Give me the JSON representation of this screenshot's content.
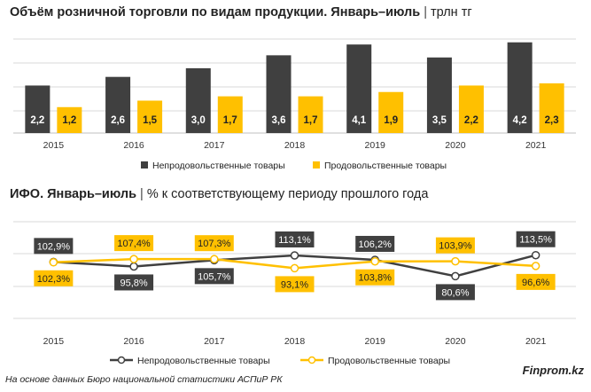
{
  "header1": {
    "title_bold": "Объём розничной торговли по видам продукции. Январь–июль",
    "title_unit": "трлн тг"
  },
  "header2": {
    "title_bold": "ИФО. Январь–июль",
    "title_unit": "% к соответствующему периоду прошлого года"
  },
  "footer": {
    "source": "На основе данных Бюро национальной статистики АСПиР РК",
    "brand": "Finprom.kz"
  },
  "colors": {
    "dark": "#404040",
    "yellow": "#FFC000",
    "grid": "#D9D9D9"
  },
  "chart_data": [
    {
      "type": "bar",
      "categories": [
        "2015",
        "2016",
        "2017",
        "2018",
        "2019",
        "2020",
        "2021"
      ],
      "series": [
        {
          "name": "Непродовольственные товары",
          "values": [
            2.2,
            2.6,
            3.0,
            3.6,
            4.1,
            3.5,
            4.2
          ],
          "labels": [
            "2,2",
            "2,6",
            "3,0",
            "3,6",
            "4,1",
            "3,5",
            "4,2"
          ]
        },
        {
          "name": "Продовольственные товары",
          "values": [
            1.2,
            1.5,
            1.7,
            1.7,
            1.9,
            2.2,
            2.3
          ],
          "labels": [
            "1,2",
            "1,5",
            "1,7",
            "1,7",
            "1,9",
            "2,2",
            "2,3"
          ]
        }
      ],
      "ylim": [
        0,
        4.6
      ],
      "grid": true,
      "legend": "bottom"
    },
    {
      "type": "line",
      "categories": [
        "2015",
        "2016",
        "2017",
        "2018",
        "2019",
        "2020",
        "2021"
      ],
      "series": [
        {
          "name": "Непродовольственные товары",
          "values": [
            102.9,
            95.8,
            105.7,
            113.1,
            106.2,
            80.6,
            113.5
          ],
          "labels": [
            "102,9%",
            "95,8%",
            "105,7%",
            "113,1%",
            "106,2%",
            "80,6%",
            "113,5%"
          ]
        },
        {
          "name": "Продовольственные товары",
          "values": [
            102.3,
            107.4,
            107.3,
            93.1,
            103.8,
            103.9,
            96.6
          ],
          "labels": [
            "102,3%",
            "107,4%",
            "107,3%",
            "93,1%",
            "103,8%",
            "103,9%",
            "96,6%"
          ]
        }
      ],
      "grid": true,
      "legend": "bottom"
    }
  ]
}
